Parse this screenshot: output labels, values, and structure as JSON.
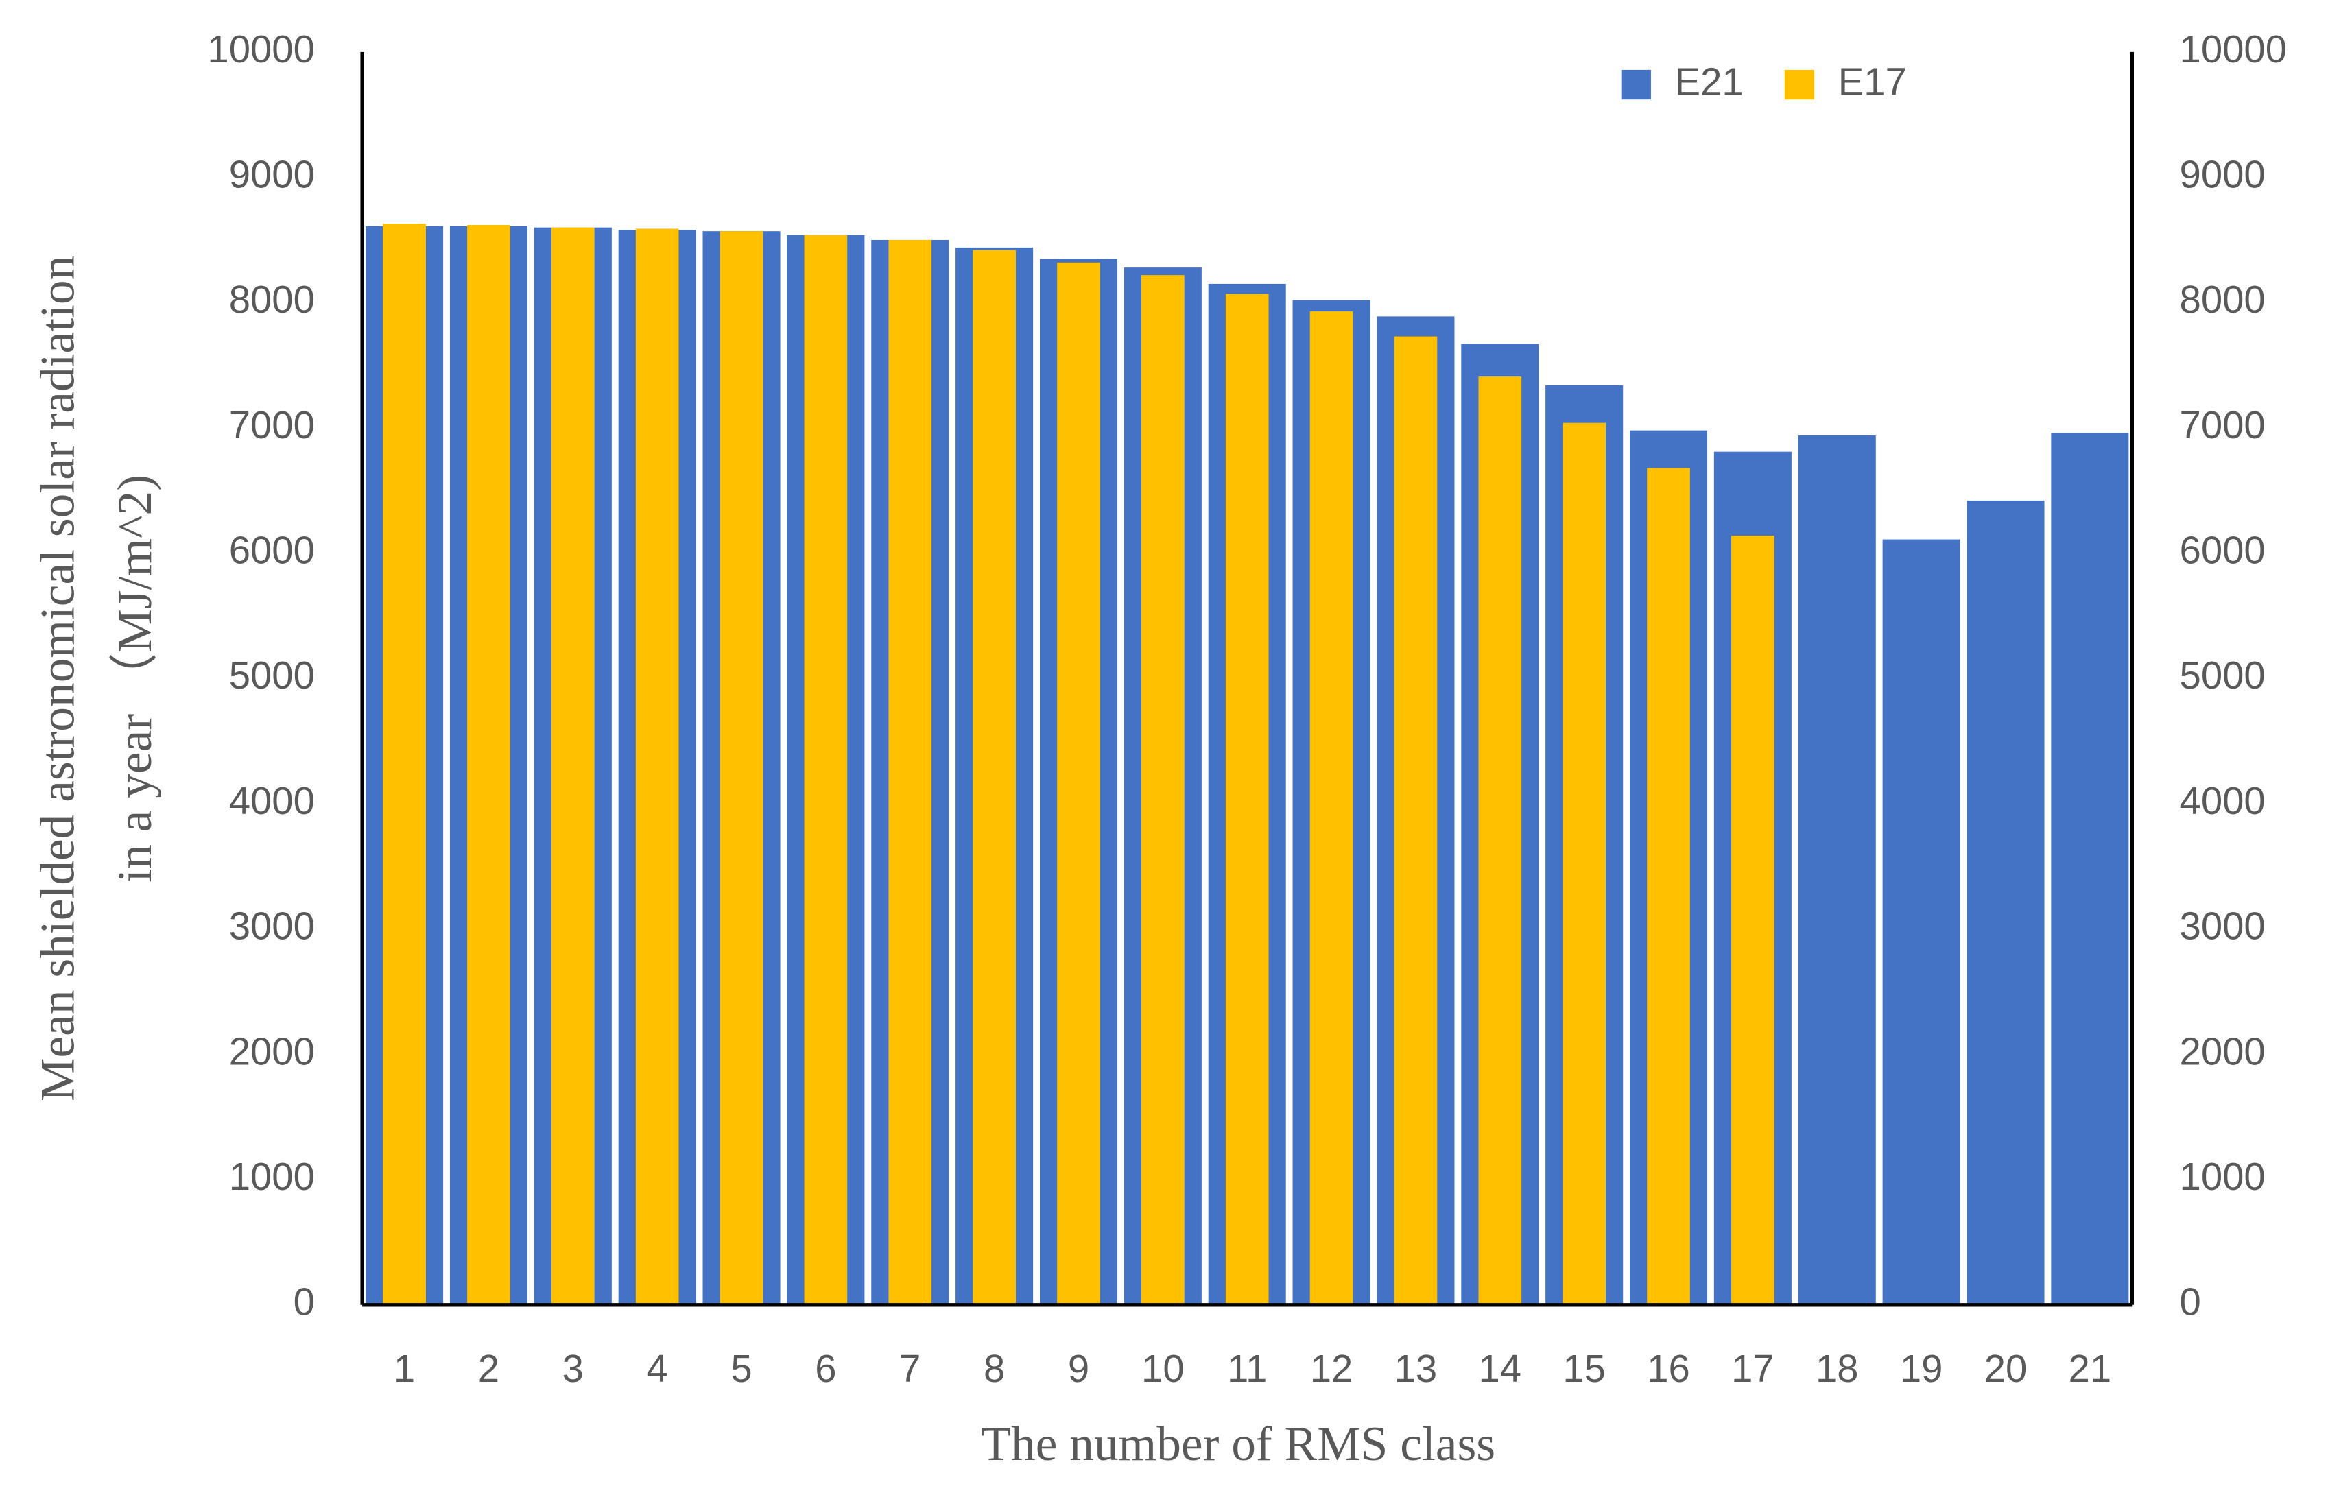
{
  "chart_data": {
    "type": "bar",
    "y_label": [
      "Mean shielded astronomical solar radiation",
      "in a year （MJ/m^2)"
    ],
    "x_label": "The number of RMS class",
    "categories": [
      "1",
      "2",
      "3",
      "4",
      "5",
      "6",
      "7",
      "8",
      "9",
      "10",
      "11",
      "12",
      "13",
      "14",
      "15",
      "16",
      "17",
      "18",
      "19",
      "20",
      "21"
    ],
    "series": [
      {
        "name": "E21",
        "color": "#4472c4",
        "values": [
          8610,
          8610,
          8600,
          8580,
          8570,
          8540,
          8500,
          8440,
          8350,
          8280,
          8150,
          8020,
          7890,
          7670,
          7340,
          6980,
          6810,
          6940,
          6110,
          6420,
          6960
        ]
      },
      {
        "name": "E17",
        "color": "#ffc000",
        "values": [
          8630,
          8620,
          8600,
          8590,
          8570,
          8540,
          8500,
          8420,
          8320,
          8220,
          8070,
          7930,
          7730,
          7410,
          7040,
          6680,
          6140,
          null,
          null,
          null,
          null
        ]
      }
    ],
    "ylim": [
      0,
      10000
    ],
    "yticks": [
      0,
      1000,
      2000,
      3000,
      4000,
      5000,
      6000,
      7000,
      8000,
      9000,
      10000
    ],
    "y2lim": [
      0,
      10000
    ],
    "y2ticks": [
      0,
      1000,
      2000,
      3000,
      4000,
      5000,
      6000,
      7000,
      8000,
      9000,
      10000
    ],
    "legend": "top-right",
    "grid": false
  }
}
